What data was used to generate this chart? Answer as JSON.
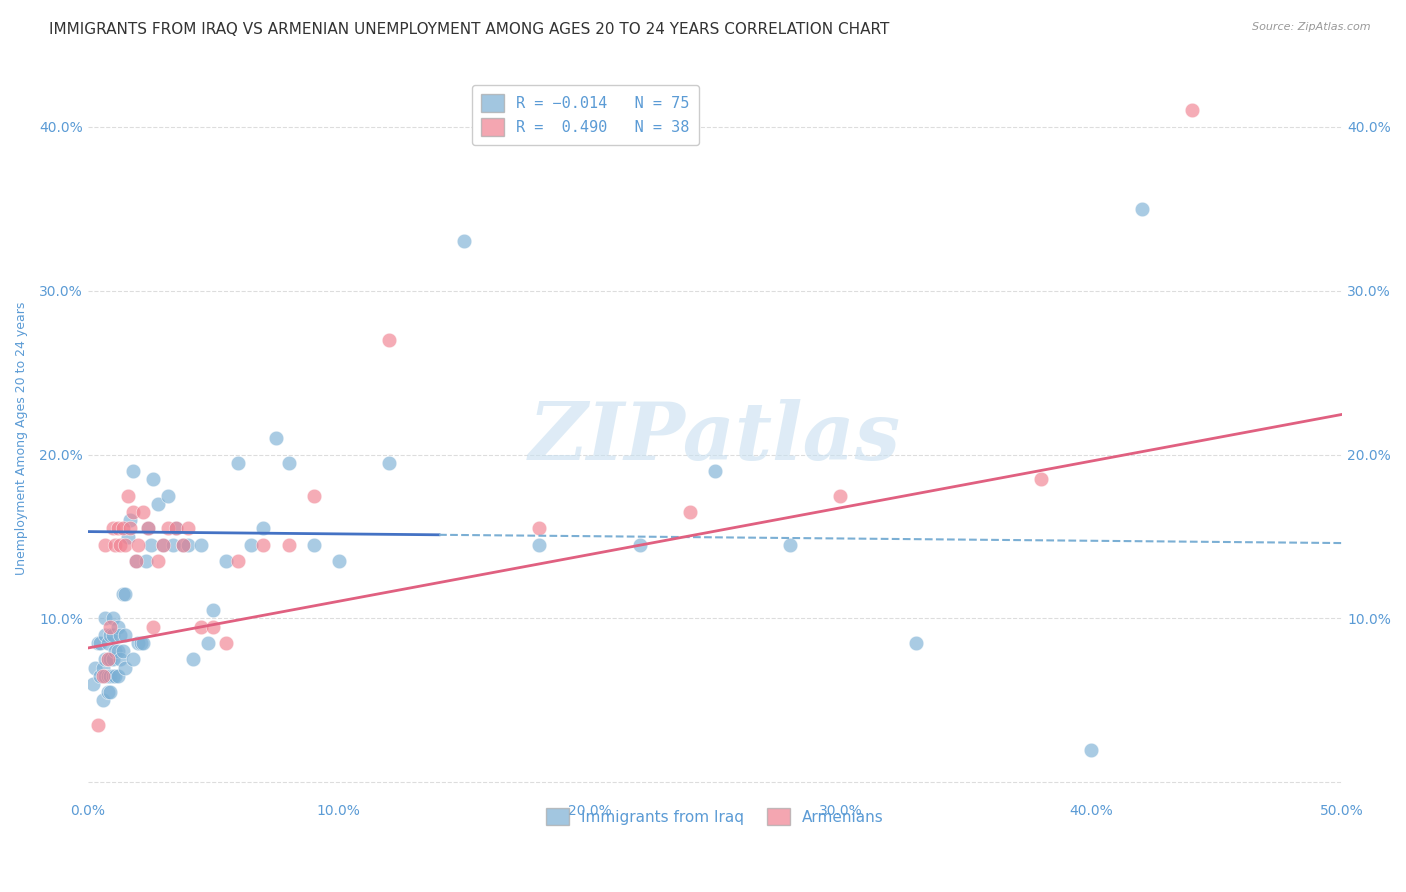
{
  "title": "IMMIGRANTS FROM IRAQ VS ARMENIAN UNEMPLOYMENT AMONG AGES 20 TO 24 YEARS CORRELATION CHART",
  "source": "Source: ZipAtlas.com",
  "ylabel": "Unemployment Among Ages 20 to 24 years",
  "xlim": [
    0.0,
    0.5
  ],
  "ylim": [
    -0.01,
    0.43
  ],
  "x_ticks": [
    0.0,
    0.1,
    0.2,
    0.3,
    0.4,
    0.5
  ],
  "x_tick_labels": [
    "0.0%",
    "10.0%",
    "20.0%",
    "30.0%",
    "40.0%",
    "50.0%"
  ],
  "y_ticks": [
    0.0,
    0.1,
    0.2,
    0.3,
    0.4
  ],
  "y_tick_labels": [
    "",
    "10.0%",
    "20.0%",
    "30.0%",
    "40.0%"
  ],
  "iraq_color": "#7bafd4",
  "armenian_color": "#f08090",
  "iraq_line_intercept": 0.153,
  "iraq_line_slope": -0.014,
  "armenian_line_intercept": 0.082,
  "armenian_line_slope": 0.285,
  "iraq_x": [
    0.002,
    0.003,
    0.004,
    0.005,
    0.005,
    0.006,
    0.006,
    0.007,
    0.007,
    0.007,
    0.007,
    0.008,
    0.008,
    0.008,
    0.008,
    0.009,
    0.009,
    0.009,
    0.009,
    0.01,
    0.01,
    0.01,
    0.01,
    0.011,
    0.011,
    0.012,
    0.012,
    0.012,
    0.013,
    0.013,
    0.014,
    0.014,
    0.015,
    0.015,
    0.015,
    0.016,
    0.017,
    0.018,
    0.018,
    0.019,
    0.02,
    0.021,
    0.022,
    0.023,
    0.024,
    0.025,
    0.026,
    0.028,
    0.03,
    0.032,
    0.034,
    0.035,
    0.038,
    0.04,
    0.042,
    0.045,
    0.048,
    0.05,
    0.055,
    0.06,
    0.065,
    0.07,
    0.075,
    0.08,
    0.09,
    0.1,
    0.12,
    0.15,
    0.18,
    0.22,
    0.25,
    0.28,
    0.33,
    0.4,
    0.42
  ],
  "iraq_y": [
    0.06,
    0.07,
    0.085,
    0.065,
    0.085,
    0.05,
    0.07,
    0.065,
    0.075,
    0.09,
    0.1,
    0.055,
    0.065,
    0.075,
    0.085,
    0.055,
    0.065,
    0.075,
    0.09,
    0.065,
    0.075,
    0.09,
    0.1,
    0.065,
    0.08,
    0.065,
    0.08,
    0.095,
    0.075,
    0.09,
    0.08,
    0.115,
    0.07,
    0.09,
    0.115,
    0.15,
    0.16,
    0.075,
    0.19,
    0.135,
    0.085,
    0.085,
    0.085,
    0.135,
    0.155,
    0.145,
    0.185,
    0.17,
    0.145,
    0.175,
    0.145,
    0.155,
    0.145,
    0.145,
    0.075,
    0.145,
    0.085,
    0.105,
    0.135,
    0.195,
    0.145,
    0.155,
    0.21,
    0.195,
    0.145,
    0.135,
    0.195,
    0.33,
    0.145,
    0.145,
    0.19,
    0.145,
    0.085,
    0.02,
    0.35
  ],
  "armenian_x": [
    0.004,
    0.006,
    0.007,
    0.008,
    0.009,
    0.01,
    0.011,
    0.012,
    0.013,
    0.014,
    0.015,
    0.016,
    0.017,
    0.018,
    0.019,
    0.02,
    0.022,
    0.024,
    0.026,
    0.028,
    0.03,
    0.032,
    0.035,
    0.038,
    0.04,
    0.045,
    0.05,
    0.055,
    0.06,
    0.07,
    0.08,
    0.09,
    0.12,
    0.18,
    0.24,
    0.3,
    0.38,
    0.44
  ],
  "armenian_y": [
    0.035,
    0.065,
    0.145,
    0.075,
    0.095,
    0.155,
    0.145,
    0.155,
    0.145,
    0.155,
    0.145,
    0.175,
    0.155,
    0.165,
    0.135,
    0.145,
    0.165,
    0.155,
    0.095,
    0.135,
    0.145,
    0.155,
    0.155,
    0.145,
    0.155,
    0.095,
    0.095,
    0.085,
    0.135,
    0.145,
    0.145,
    0.175,
    0.27,
    0.155,
    0.165,
    0.175,
    0.185,
    0.41
  ],
  "watermark_text": "ZIPatlas",
  "watermark_color": "#c8dff0",
  "background_color": "#ffffff",
  "grid_color": "#dddddd",
  "axis_color": "#5b9bd5",
  "title_color": "#333333",
  "title_fontsize": 11,
  "axis_label_fontsize": 9,
  "tick_fontsize": 10,
  "source_fontsize": 8
}
